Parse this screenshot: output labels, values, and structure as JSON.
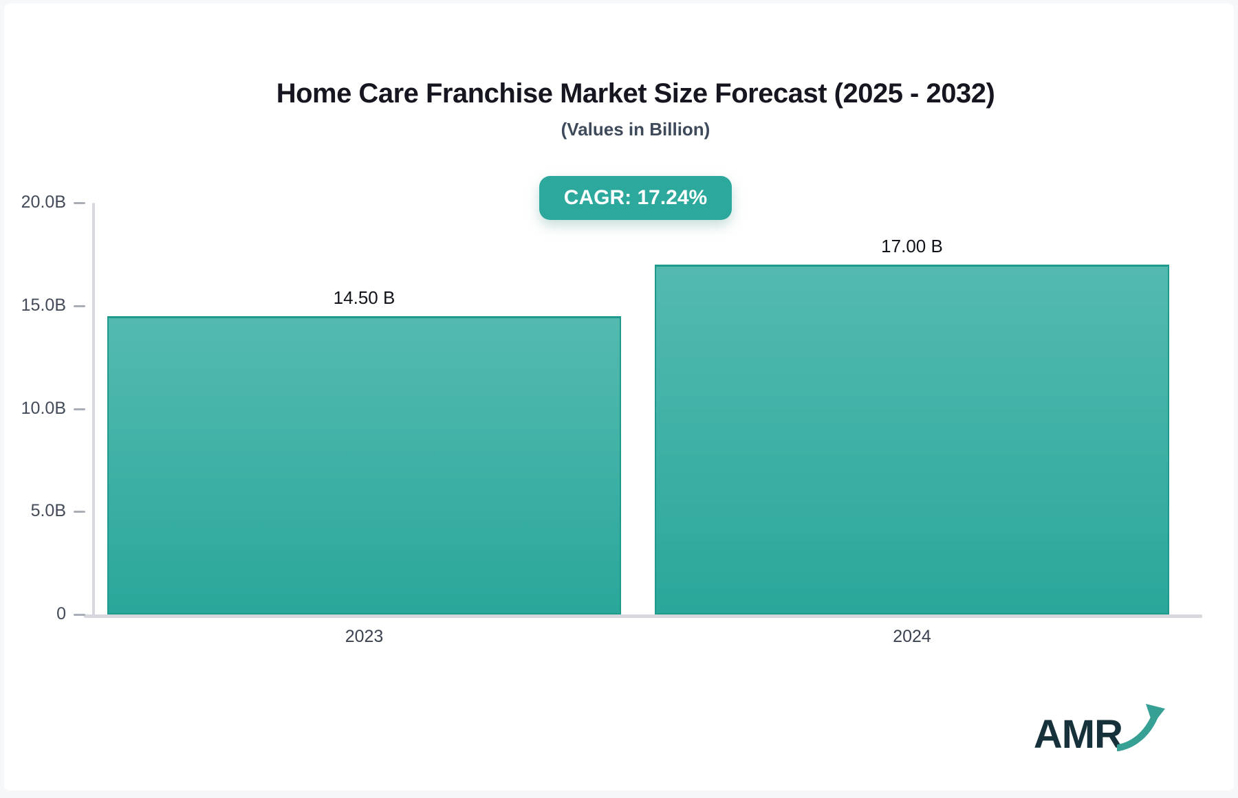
{
  "header": {
    "title": "Home Care Franchise Market Size Forecast (2025 - 2032)",
    "subtitle": "(Values in Billion)",
    "cagr_label": "CAGR: 17.24%"
  },
  "chart_data": {
    "type": "bar",
    "title": "Home Care Franchise Market Size Forecast (2025 - 2032)",
    "subtitle": "(Values in Billion)",
    "cagr_percent": 17.24,
    "categories": [
      "2023",
      "2024"
    ],
    "values": [
      14.5,
      17.0
    ],
    "value_labels": [
      "14.50 B",
      "17.00 B"
    ],
    "ylim": [
      0,
      20
    ],
    "yticks": [
      20,
      15,
      10,
      5,
      0
    ],
    "ytick_labels": [
      "20.0B",
      "15.0B",
      "10.0B",
      "5.0B",
      "0"
    ],
    "xlabel": "",
    "ylabel": "",
    "grid": false,
    "legend": "none",
    "bar_color_top": "#54BAB0",
    "bar_color_bottom": "#2AA79A",
    "bar_border_color": "#1F998C"
  },
  "colors": {
    "accent_teal": "#2CA99C",
    "title_text": "#15161F",
    "subtitle_text": "#3E4A5A",
    "axis_text": "#434B58",
    "axis_line": "#D7D8DE",
    "logo_text": "#17313B",
    "logo_arrow": "#37A094"
  },
  "logo": {
    "text": "AMR"
  }
}
